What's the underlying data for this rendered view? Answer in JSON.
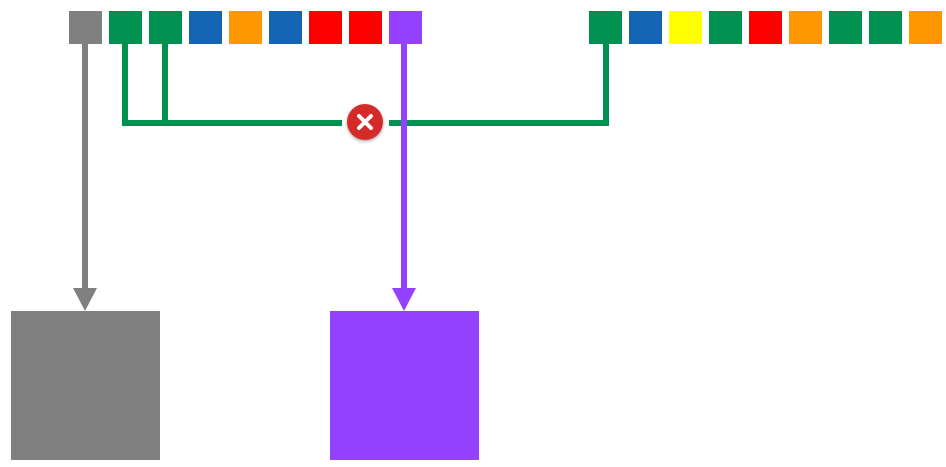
{
  "colors": {
    "gray": "#808080",
    "green": "#009050",
    "blue": "#1565b5",
    "orange": "#ff9800",
    "red": "#ff0000",
    "purple": "#9340ff",
    "yellow": "#ffff00",
    "error_red": "#d42a2a",
    "white": "#ffffff"
  },
  "left_row": {
    "squares": [
      "gray",
      "green",
      "green",
      "blue",
      "orange",
      "blue",
      "red",
      "red",
      "purple"
    ]
  },
  "right_row": {
    "squares": [
      "green",
      "blue",
      "yellow",
      "green",
      "red",
      "orange",
      "green",
      "green",
      "orange"
    ]
  },
  "blocks": {
    "left_block_color": "gray",
    "right_block_color": "purple"
  },
  "icons": {
    "error_icon": "close-x-circle-icon"
  }
}
